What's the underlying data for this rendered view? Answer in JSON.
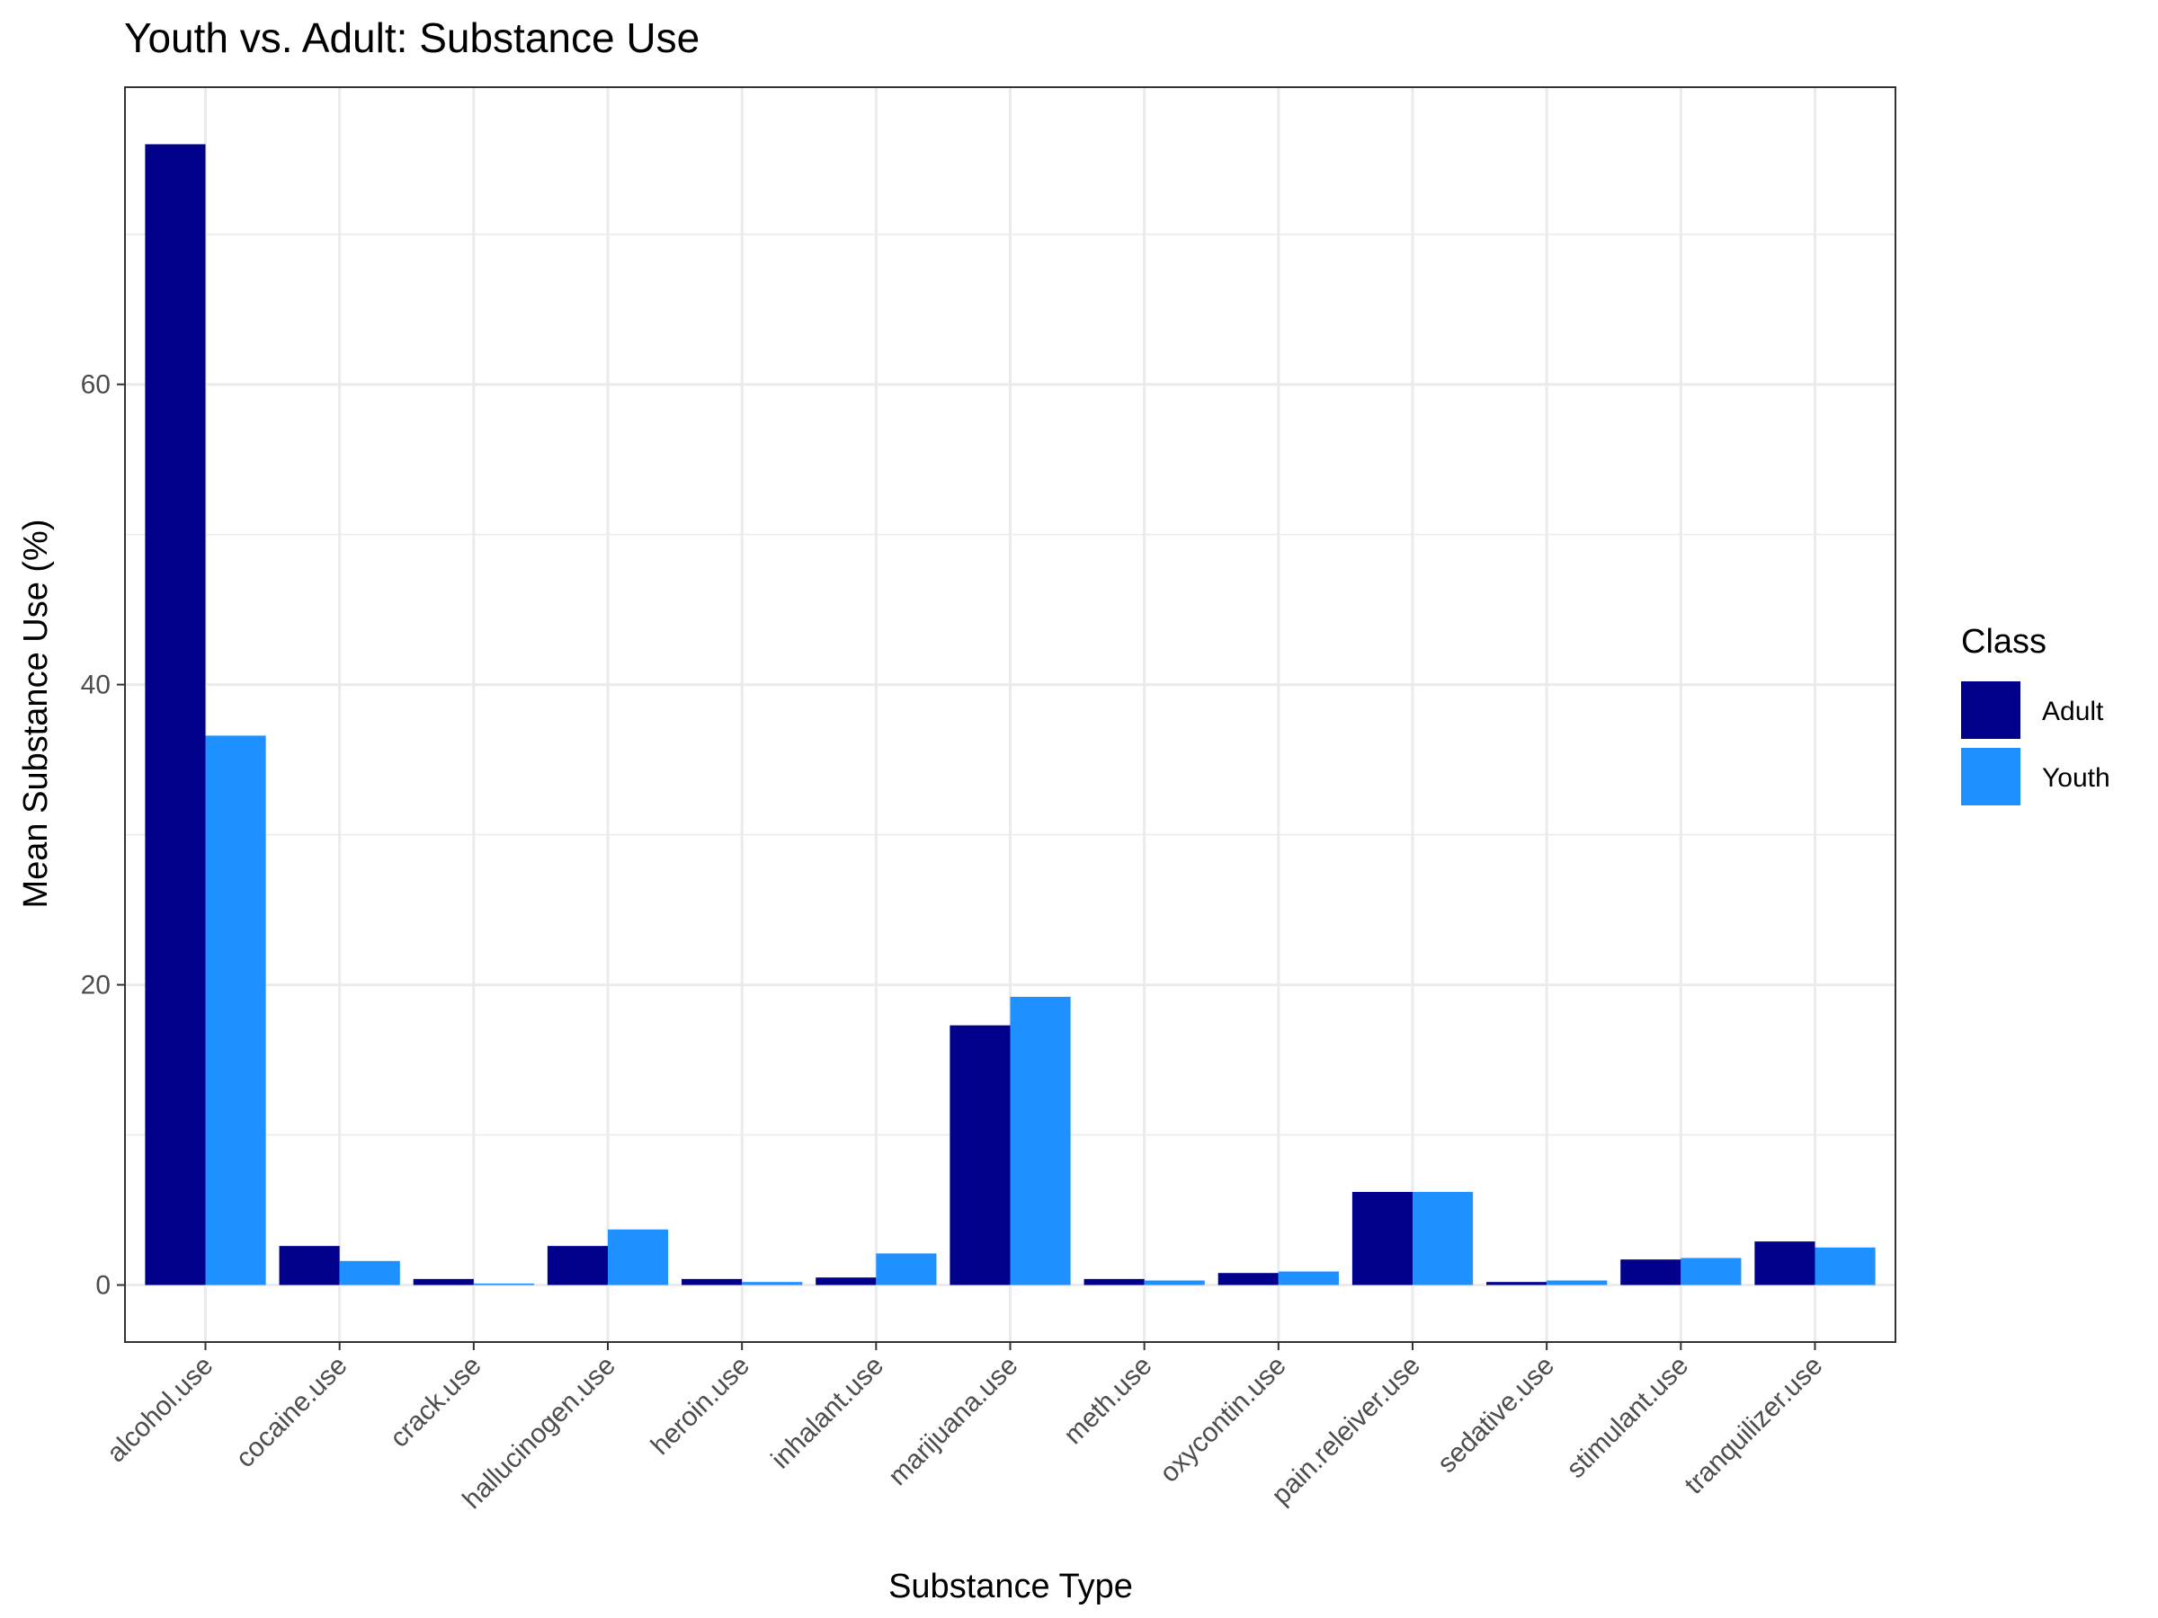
{
  "chart_data": {
    "type": "bar",
    "title": "Youth vs. Adult: Substance Use",
    "xlabel": "Substance Type",
    "ylabel": "Mean Substance Use (%)",
    "categories": [
      "alcohol.use",
      "cocaine.use",
      "crack.use",
      "hallucinogen.use",
      "heroin.use",
      "inhalant.use",
      "marijuana.use",
      "meth.use",
      "oxycontin.use",
      "pain.releiver.use",
      "sedative.use",
      "stimulant.use",
      "tranquilizer.use"
    ],
    "series": [
      {
        "name": "Adult",
        "color": "#00008B",
        "values": [
          76.0,
          2.6,
          0.4,
          2.6,
          0.4,
          0.5,
          17.3,
          0.4,
          0.8,
          6.2,
          0.2,
          1.7,
          2.9
        ]
      },
      {
        "name": "Youth",
        "color": "#1E90FF",
        "values": [
          36.6,
          1.6,
          0.1,
          3.7,
          0.2,
          2.1,
          19.2,
          0.3,
          0.9,
          6.2,
          0.3,
          1.8,
          2.5
        ]
      }
    ],
    "yticks": [
      0,
      20,
      40,
      60
    ],
    "ylim": [
      -3.8,
      79.8
    ],
    "grid": true,
    "legend": {
      "title": "Class",
      "placement": "right"
    }
  }
}
